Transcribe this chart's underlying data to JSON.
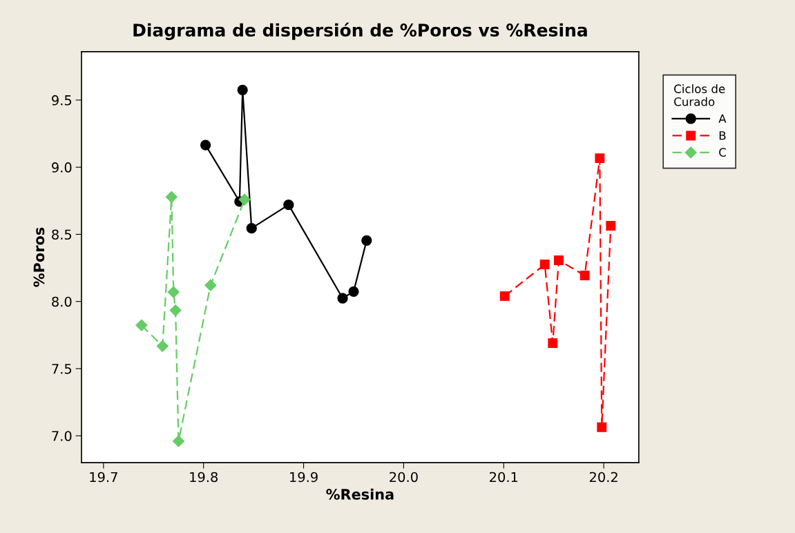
{
  "chart_data": {
    "type": "line",
    "title": "Diagrama de dispersión de %Poros vs %Resina",
    "xlabel": "%Resina",
    "ylabel": "%Poros",
    "legend_title": "Ciclos de\nCurado",
    "legend": "top right",
    "grid": false,
    "xlim": [
      19.678,
      20.235
    ],
    "xticks": [
      {
        "value": 19.7,
        "label": "19.7"
      },
      {
        "value": 19.8,
        "label": "19.8"
      },
      {
        "value": 19.9,
        "label": "19.9"
      },
      {
        "value": 20.0,
        "label": "20.0"
      },
      {
        "value": 20.1,
        "label": "20.1"
      },
      {
        "value": 20.2,
        "label": "20.2"
      }
    ],
    "ylim": [
      6.8,
      9.86
    ],
    "yticks": [
      {
        "value": 7.0,
        "label": "7.0"
      },
      {
        "value": 7.5,
        "label": "7.5"
      },
      {
        "value": 8.0,
        "label": "8.0"
      },
      {
        "value": 8.5,
        "label": "8.5"
      },
      {
        "value": 9.0,
        "label": "9.0"
      },
      {
        "value": 9.5,
        "label": "9.5"
      }
    ],
    "series": [
      {
        "name": "A",
        "color": "#000000",
        "marker": "circle",
        "line_style": "solid",
        "x": [
          19.802,
          19.836,
          19.839,
          19.848,
          19.885,
          19.939,
          19.95,
          19.963
        ],
        "values": [
          9.165,
          8.744,
          9.575,
          8.545,
          8.72,
          8.024,
          8.074,
          8.454
        ]
      },
      {
        "name": "B",
        "color": "#ff0000",
        "marker": "square",
        "line_style": "dashed",
        "x": [
          20.101,
          20.141,
          20.149,
          20.155,
          20.181,
          20.196,
          20.198,
          20.207
        ],
        "values": [
          8.04,
          8.276,
          7.69,
          8.307,
          8.194,
          9.067,
          7.064,
          8.564
        ]
      },
      {
        "name": "C",
        "color": "#66cc66",
        "marker": "diamond",
        "line_style": "dashed",
        "x": [
          19.738,
          19.759,
          19.768,
          19.77,
          19.772,
          19.775,
          19.807,
          19.841
        ],
        "values": [
          7.823,
          7.668,
          8.778,
          8.07,
          7.934,
          6.96,
          8.121,
          8.759
        ]
      }
    ]
  }
}
